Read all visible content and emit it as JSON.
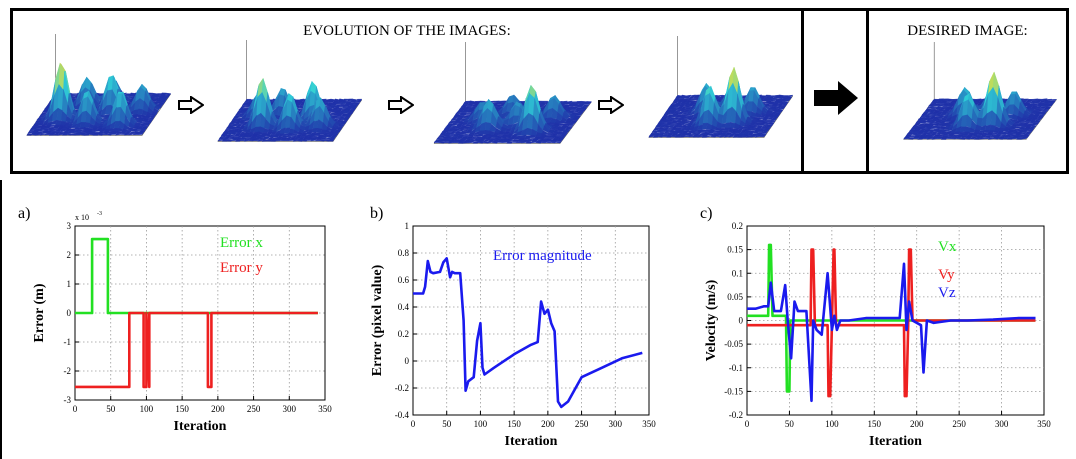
{
  "top": {
    "evolution_title": "EVOLUTION OF THE IMAGES:",
    "desired_title": "DESIRED IMAGE:",
    "colors": {
      "surface_low": "#1f2fa8",
      "surface_mid": "#2fd0d8",
      "surface_high": "#e8241a",
      "arrow": "#000000"
    }
  },
  "panels": {
    "a": "a)",
    "b": "b)",
    "c": "c)"
  },
  "chart_data": [
    {
      "type": "line",
      "id": "a",
      "xlabel": "Iteration",
      "ylabel": "Error (m)",
      "exponent_label": "x 10",
      "exponent_power": "-3",
      "xlim": [
        0,
        350
      ],
      "ylim": [
        -3,
        3
      ],
      "xticks": [
        0,
        50,
        100,
        150,
        200,
        250,
        300,
        350
      ],
      "yticks": [
        -3,
        -2,
        -1,
        0,
        1,
        2,
        3
      ],
      "grid": true,
      "legend_entries": [
        {
          "name": "Error x",
          "color": "#22e022"
        },
        {
          "name": "Error y",
          "color": "#ee2020"
        }
      ],
      "series": [
        {
          "name": "Error x",
          "color": "#22e022",
          "x": [
            0,
            24,
            24,
            46,
            46,
            340
          ],
          "y": [
            0,
            0,
            2.55,
            2.55,
            0,
            0
          ]
        },
        {
          "name": "Error y",
          "color": "#ee2020",
          "x": [
            0,
            76,
            76,
            96,
            96,
            100,
            100,
            104,
            104,
            186,
            186,
            191,
            191,
            340
          ],
          "y": [
            -2.55,
            -2.55,
            0,
            0,
            -2.55,
            -2.55,
            0,
            -2.55,
            0,
            0,
            -2.55,
            -2.55,
            0,
            0
          ]
        }
      ]
    },
    {
      "type": "line",
      "id": "b",
      "xlabel": "Iteration",
      "ylabel": "Error (pixel value)",
      "xlim": [
        0,
        350
      ],
      "ylim": [
        -0.4,
        1
      ],
      "xticks": [
        0,
        50,
        100,
        150,
        200,
        250,
        300,
        350
      ],
      "yticks": [
        -0.4,
        -0.2,
        0,
        0.2,
        0.4,
        0.6,
        0.8,
        1
      ],
      "grid": true,
      "legend_entries": [
        {
          "name": "Error magnitude",
          "color": "#1a1aee"
        }
      ],
      "series": [
        {
          "name": "Error magnitude",
          "color": "#1a1aee",
          "x": [
            0,
            15,
            18,
            22,
            26,
            30,
            40,
            45,
            50,
            55,
            58,
            62,
            70,
            75,
            78,
            82,
            90,
            95,
            100,
            103,
            106,
            120,
            150,
            175,
            185,
            190,
            195,
            200,
            205,
            210,
            215,
            220,
            230,
            250,
            280,
            310,
            340
          ],
          "y": [
            0.5,
            0.5,
            0.55,
            0.74,
            0.66,
            0.65,
            0.66,
            0.73,
            0.76,
            0.62,
            0.66,
            0.65,
            0.65,
            0.3,
            -0.22,
            -0.15,
            -0.12,
            0.15,
            0.28,
            -0.05,
            -0.1,
            -0.05,
            0.05,
            0.12,
            0.14,
            0.44,
            0.35,
            0.38,
            0.28,
            0.22,
            -0.3,
            -0.34,
            -0.3,
            -0.12,
            -0.05,
            0.02,
            0.06
          ]
        }
      ]
    },
    {
      "type": "line",
      "id": "c",
      "xlabel": "Iteration",
      "ylabel": "Velocity (m/s)",
      "xlim": [
        0,
        350
      ],
      "ylim": [
        -0.2,
        0.2
      ],
      "xticks": [
        0,
        50,
        100,
        150,
        200,
        250,
        300,
        350
      ],
      "yticks": [
        -0.2,
        -0.15,
        -0.1,
        -0.05,
        0,
        0.05,
        0.1,
        0.15,
        0.2
      ],
      "grid": true,
      "legend_entries": [
        {
          "name": "Vx",
          "color": "#22e022"
        },
        {
          "name": "Vy",
          "color": "#ee2020"
        },
        {
          "name": "Vz",
          "color": "#1a1aee"
        }
      ],
      "series": [
        {
          "name": "Vx",
          "color": "#22e022",
          "x": [
            0,
            25,
            26,
            28,
            30,
            46,
            47,
            50,
            51,
            190,
            210,
            340
          ],
          "y": [
            0.01,
            0.01,
            0.16,
            0.16,
            0.01,
            0.01,
            -0.15,
            -0.15,
            0.0,
            0.0,
            0.0,
            0.0
          ]
        },
        {
          "name": "Vy",
          "color": "#ee2020",
          "x": [
            0,
            75,
            76,
            78,
            80,
            95,
            96,
            98,
            100,
            102,
            103,
            105,
            107,
            185,
            186,
            188,
            190,
            191,
            193,
            195,
            340
          ],
          "y": [
            -0.01,
            -0.01,
            0.15,
            0.15,
            -0.01,
            -0.01,
            -0.16,
            -0.16,
            -0.01,
            0.15,
            0.15,
            -0.01,
            -0.01,
            -0.01,
            -0.16,
            -0.16,
            -0.01,
            0.15,
            0.15,
            0.0,
            0.0
          ]
        },
        {
          "name": "Vz",
          "color": "#1a1aee",
          "x": [
            0,
            10,
            20,
            25,
            28,
            32,
            40,
            45,
            48,
            52,
            56,
            60,
            65,
            70,
            76,
            78,
            82,
            88,
            95,
            100,
            103,
            106,
            110,
            120,
            140,
            160,
            180,
            185,
            188,
            191,
            195,
            205,
            208,
            212,
            220,
            240,
            260,
            290,
            320,
            340
          ],
          "y": [
            0.025,
            0.025,
            0.03,
            0.03,
            0.08,
            0.02,
            0.02,
            0.075,
            0.0,
            -0.08,
            0.04,
            0.02,
            0.02,
            0.02,
            -0.17,
            0.0,
            -0.02,
            -0.03,
            0.1,
            -0.02,
            0.01,
            -0.02,
            0.0,
            0.0,
            0.005,
            0.005,
            0.005,
            0.12,
            -0.02,
            0.04,
            0.0,
            -0.01,
            -0.11,
            0.0,
            -0.005,
            0.0,
            0.0,
            0.002,
            0.005,
            0.005
          ]
        }
      ]
    }
  ]
}
